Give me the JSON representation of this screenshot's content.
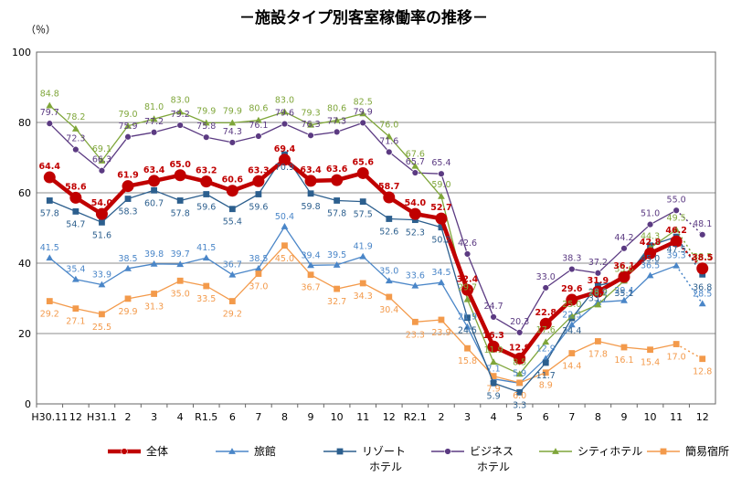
{
  "chart_data": {
    "type": "line",
    "title": "－施設タイプ別客室稼働率の推移－",
    "ylabel": "（％）",
    "ylim": [
      0,
      100
    ],
    "yticks": [
      "0",
      "20",
      "40",
      "60",
      "80",
      "100"
    ],
    "categories": [
      "H30.11",
      "12",
      "H31.1",
      "2",
      "3",
      "4",
      "R1.5",
      "6",
      "7",
      "8",
      "9",
      "10",
      "11",
      "12",
      "R2.1",
      "2",
      "3",
      "4",
      "5",
      "6",
      "7",
      "8",
      "9",
      "10",
      "11",
      "12"
    ],
    "grid": true,
    "legend_position": "bottom",
    "series": [
      {
        "key": "ryokan",
        "name": "旅館",
        "color": "#4a86c8",
        "width": 1.3,
        "marker": "triangle",
        "bold": false,
        "values": [
          41.5,
          35.4,
          33.9,
          38.5,
          39.8,
          39.7,
          41.5,
          36.7,
          38.5,
          50.4,
          39.4,
          39.5,
          41.9,
          35.0,
          33.6,
          34.5,
          21.9,
          7.1,
          5.9,
          12.9,
          22.5,
          28.9,
          29.4,
          36.5,
          39.3,
          28.5
        ],
        "labels": [
          "41.5",
          "35.4",
          "33.9",
          "38.5",
          "39.8",
          "39.7",
          "41.5",
          "36.7",
          "38.5",
          "50.4",
          "39.4",
          "39.5",
          "41.9",
          "35.0",
          "33.6",
          "34.5",
          "21.9",
          "7.1",
          "5.9",
          "12.9",
          "22.5",
          "28.9",
          "29.4",
          "36.5",
          "39.3",
          "28.5"
        ]
      },
      {
        "key": "kanni",
        "name": "簡易宿所",
        "color": "#f39a4b",
        "width": 1.3,
        "marker": "square",
        "bold": false,
        "values": [
          29.2,
          27.1,
          25.5,
          29.9,
          31.3,
          35.0,
          33.5,
          29.2,
          37.0,
          45.0,
          36.7,
          32.7,
          34.3,
          30.4,
          23.3,
          23.9,
          15.8,
          7.9,
          6.0,
          8.9,
          14.4,
          17.8,
          16.1,
          15.4,
          17.0,
          12.8
        ],
        "labels": [
          "29.2",
          "27.1",
          "25.5",
          "29.9",
          "31.3",
          "35.0",
          "33.5",
          "29.2",
          "37.0",
          "45.0",
          "36.7",
          "32.7",
          "34.3",
          "30.4",
          "23.3",
          "23.9",
          "15.8",
          "7.9",
          "6.0",
          "8.9",
          "14.4",
          "17.8",
          "16.1",
          "15.4",
          "17.0",
          "12.8"
        ]
      },
      {
        "key": "resort",
        "name": "リゾートホテル",
        "color": "#2c5f8e",
        "width": 1.3,
        "marker": "square",
        "bold": false,
        "values": [
          57.8,
          54.7,
          51.6,
          58.3,
          60.7,
          57.8,
          59.6,
          55.4,
          59.6,
          70.9,
          59.8,
          57.8,
          57.5,
          52.6,
          52.3,
          50.2,
          24.5,
          5.9,
          3.3,
          11.7,
          24.4,
          33.7,
          35.1,
          45.0,
          47.5,
          36.8
        ],
        "labels": [
          "57.8",
          "54.7",
          "51.6",
          "58.3",
          "60.7",
          "57.8",
          "59.6",
          "55.4",
          "59.6",
          "70.9",
          "59.8",
          "57.8",
          "57.5",
          "52.6",
          "52.3",
          "50.2",
          "24.5",
          "5.9",
          "3.3",
          "11.7",
          "24.4",
          "33.7",
          "35.1",
          "45.0",
          "47.5",
          "36.8"
        ]
      },
      {
        "key": "business",
        "name": "ビジネスホテル",
        "color": "#5b3a82",
        "width": 1.3,
        "marker": "circle",
        "bold": false,
        "values": [
          79.7,
          72.3,
          66.3,
          75.9,
          77.2,
          79.2,
          75.8,
          74.3,
          76.1,
          79.6,
          76.3,
          77.3,
          79.9,
          71.6,
          65.7,
          65.4,
          42.6,
          24.7,
          20.3,
          33.0,
          38.3,
          37.2,
          44.2,
          51.0,
          55.0,
          48.1
        ],
        "labels": [
          "79.7",
          "72.3",
          "66.3",
          "75.9",
          "77.2",
          "79.2",
          "75.8",
          "74.3",
          "76.1",
          "79.6",
          "76.3",
          "77.3",
          "79.9",
          "71.6",
          "65.7",
          "65.4",
          "42.6",
          "24.7",
          "20.3",
          "33.0",
          "38.3",
          "37.2",
          "44.2",
          "51.0",
          "55.0",
          "48.1"
        ]
      },
      {
        "key": "city",
        "name": "シティホテル",
        "color": "#7fa63a",
        "width": 1.3,
        "marker": "triangle",
        "bold": false,
        "values": [
          84.8,
          78.2,
          69.1,
          79.0,
          81.0,
          83.0,
          79.9,
          79.9,
          80.6,
          83.0,
          79.3,
          80.6,
          82.5,
          76.0,
          67.6,
          59.0,
          29.7,
          11.9,
          8.5,
          17.6,
          25.0,
          28.2,
          35.0,
          44.3,
          49.5,
          38.5
        ],
        "labels": [
          "84.8",
          "78.2",
          "69.1",
          "79.0",
          "81.0",
          "83.0",
          "79.9",
          "79.9",
          "80.6",
          "83.0",
          "79.3",
          "80.6",
          "82.5",
          "76.0",
          "67.6",
          "59.0",
          "29.7",
          "11.9",
          "8.5",
          "17.6",
          "25.0",
          "28.2",
          "35.0",
          "44.3",
          "49.5",
          "38.5"
        ]
      },
      {
        "key": "total",
        "name": "全体",
        "color": "#c00000",
        "width": 4.5,
        "marker": "circle",
        "bold": true,
        "values": [
          64.4,
          58.6,
          54.0,
          61.9,
          63.4,
          65.0,
          63.2,
          60.6,
          63.3,
          69.4,
          63.4,
          63.6,
          65.6,
          58.7,
          54.0,
          52.7,
          32.4,
          16.3,
          12.9,
          22.8,
          29.6,
          31.9,
          36.1,
          42.8,
          46.2,
          38.5
        ],
        "labels": [
          "64.4",
          "58.6",
          "54.0",
          "61.9",
          "63.4",
          "65.0",
          "63.2",
          "60.6",
          "63.3",
          "69.4",
          "63.4",
          "63.6",
          "65.6",
          "58.7",
          "54.0",
          "52.7",
          "32.4",
          "16.3",
          "12.9",
          "22.8",
          "29.6",
          "31.9",
          "36.1",
          "42.8",
          "46.2",
          "38.5"
        ]
      }
    ],
    "legend": [
      {
        "key": "total",
        "label": "全体"
      },
      {
        "key": "ryokan",
        "label": "旅館"
      },
      {
        "key": "resort",
        "label": "リゾート",
        "label2": "ホテル"
      },
      {
        "key": "business",
        "label": "ビジネス",
        "label2": "ホテル"
      },
      {
        "key": "city",
        "label": "シティホテル"
      },
      {
        "key": "kanni",
        "label": "簡易宿所"
      }
    ]
  }
}
